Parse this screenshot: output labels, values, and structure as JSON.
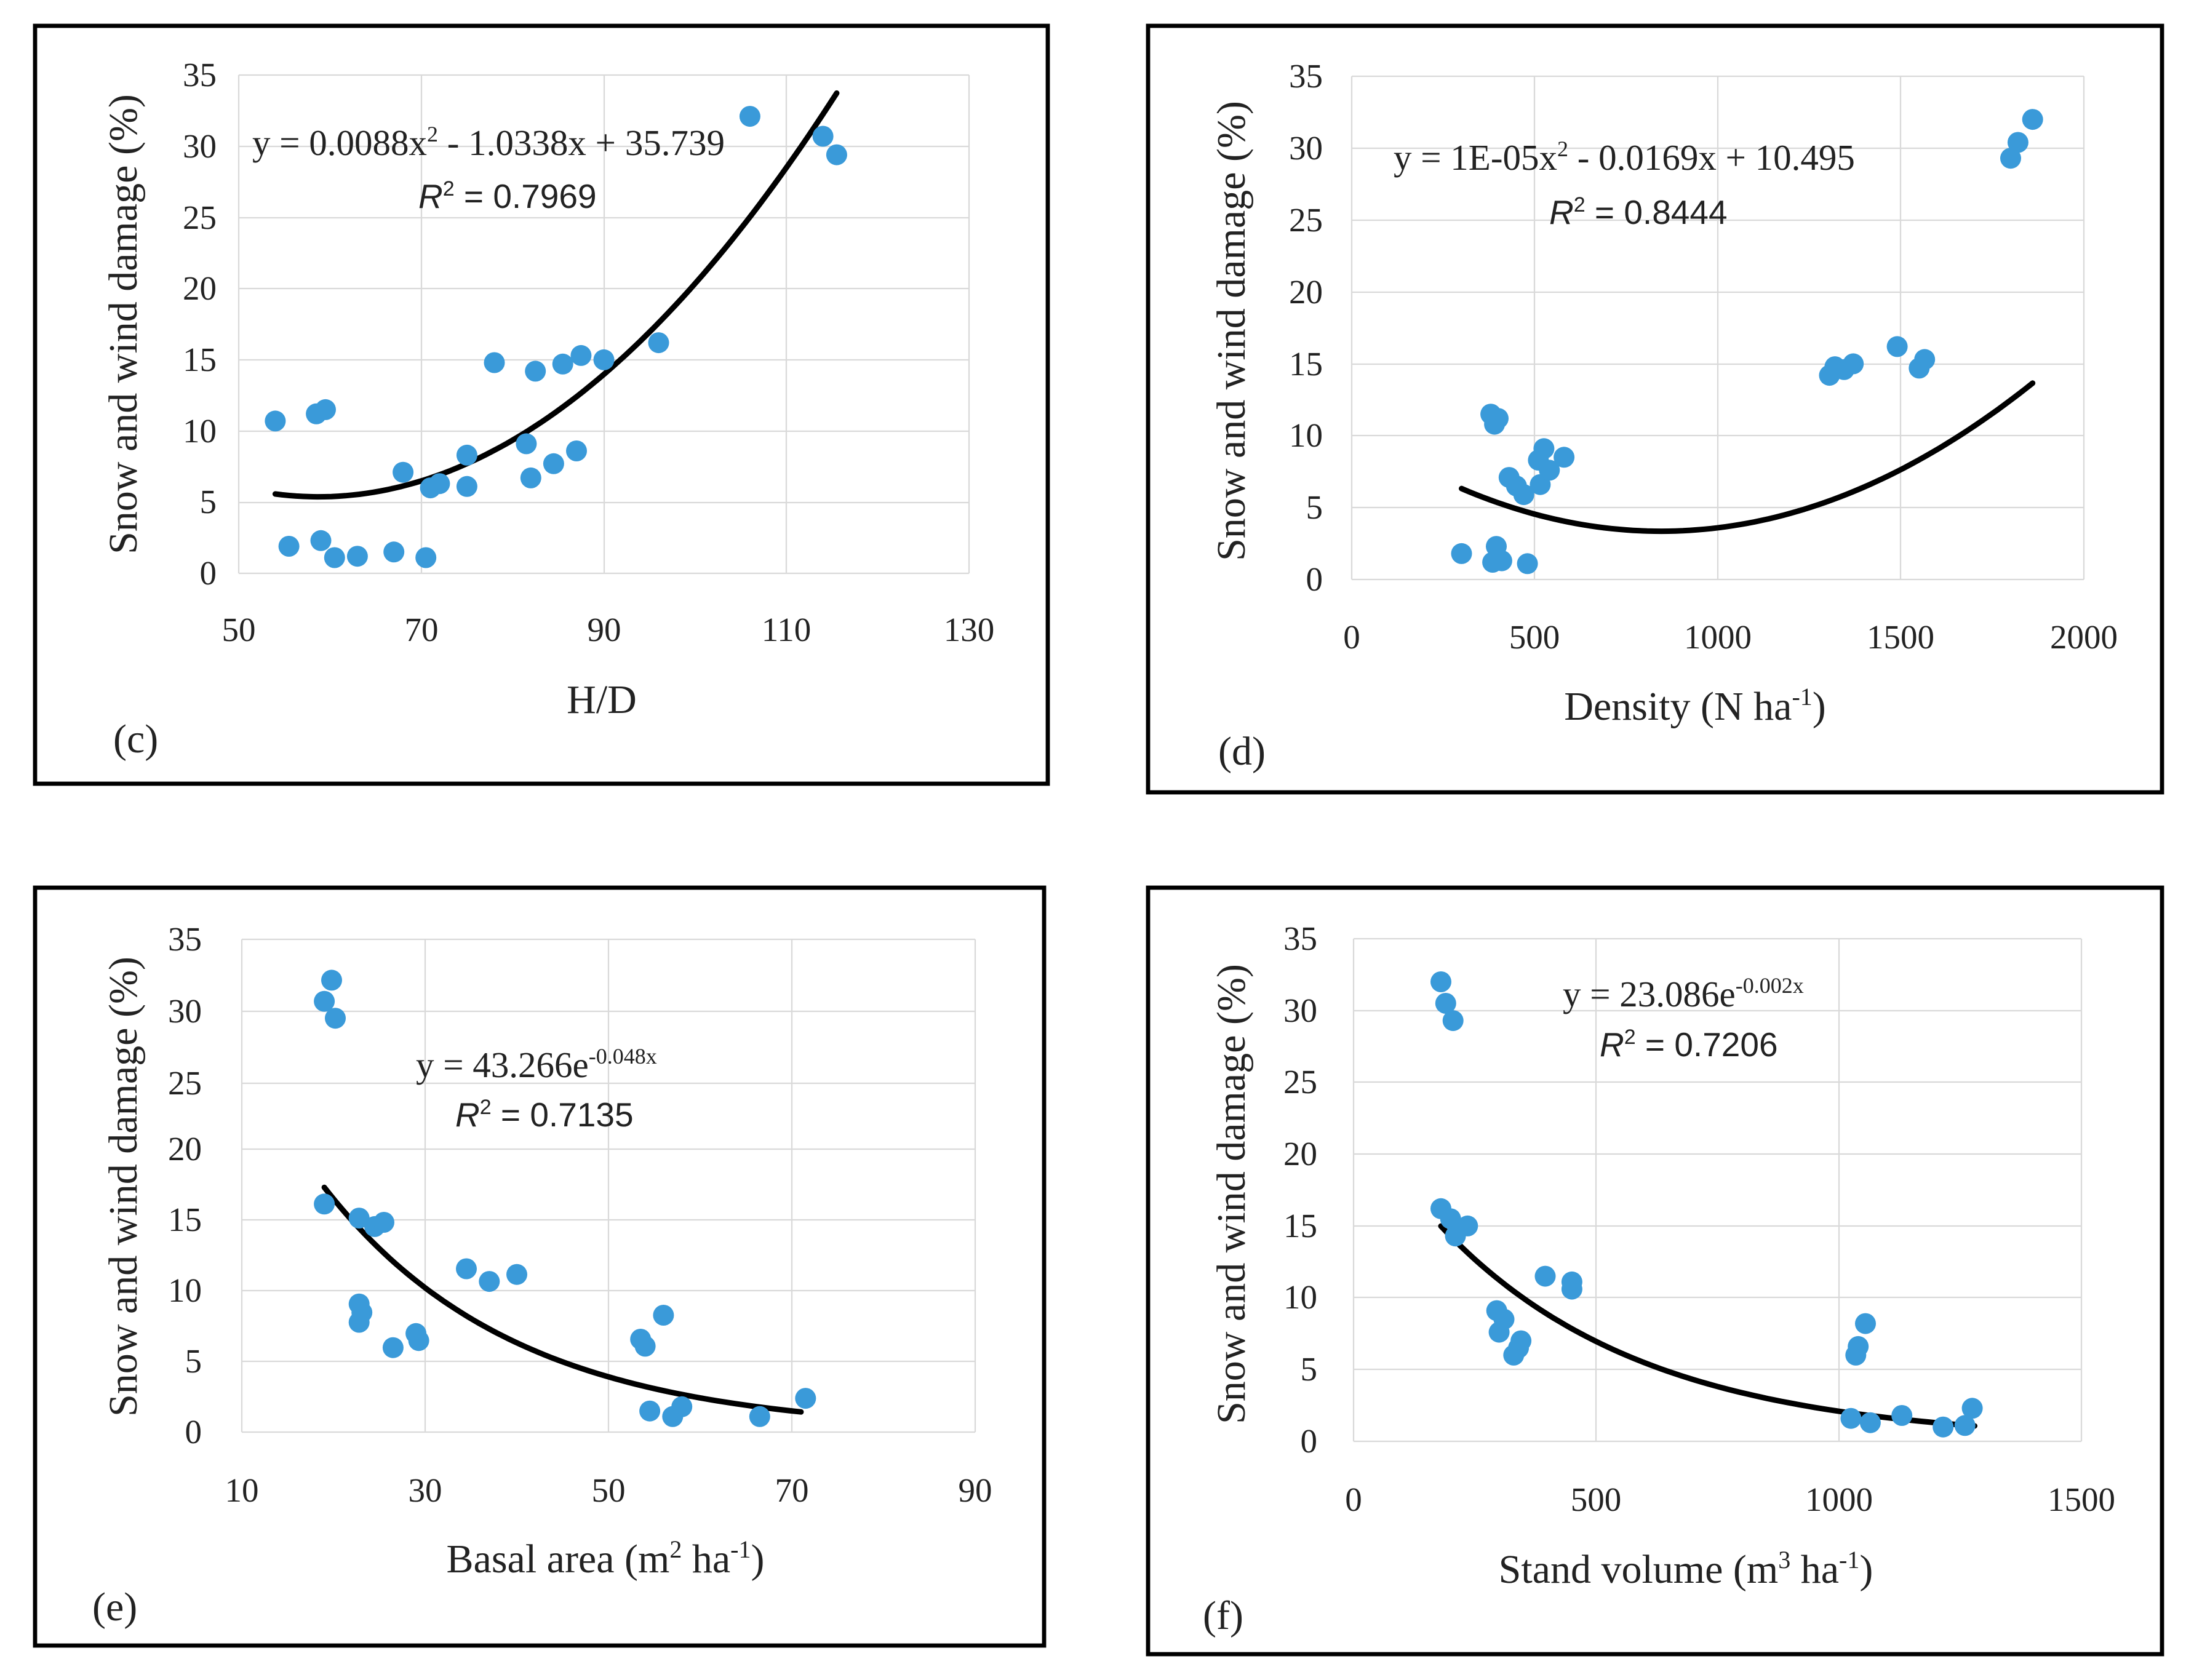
{
  "colors": {
    "point": "#3a9ad9",
    "fit_line": "#000000",
    "grid": "#d9d9d9",
    "frame": "#000000"
  },
  "chart_data": [
    {
      "panel": "(c)",
      "type": "scatter",
      "xlabel": "H/D",
      "ylabel": "Snow and wind damage (%)",
      "xlim": [
        50,
        130
      ],
      "ylim": [
        0,
        35
      ],
      "xticks": [
        50,
        70,
        90,
        110,
        130
      ],
      "yticks": [
        0,
        5,
        10,
        15,
        20,
        25,
        30,
        35
      ],
      "fit": {
        "kind": "poly2",
        "a": 0.0088,
        "b": -1.0338,
        "c": 35.739,
        "x_range": [
          54,
          115.5
        ]
      },
      "equation": {
        "pre": "y = 0.0088x",
        "sup": "2",
        "post": " - 1.0338x + 35.739"
      },
      "r2": {
        "label": "R",
        "sup": "2",
        "value": " = 0.7969"
      },
      "points": [
        [
          54,
          10.7
        ],
        [
          55.5,
          1.9
        ],
        [
          58.5,
          11.2
        ],
        [
          59.5,
          11.5
        ],
        [
          59,
          2.3
        ],
        [
          60.5,
          1.1
        ],
        [
          63,
          1.2
        ],
        [
          67,
          1.5
        ],
        [
          68,
          7.1
        ],
        [
          70.5,
          1.1
        ],
        [
          71,
          6
        ],
        [
          72,
          6.3
        ],
        [
          75,
          8.3
        ],
        [
          75,
          6.1
        ],
        [
          78,
          14.8
        ],
        [
          81.5,
          9.1
        ],
        [
          82,
          6.7
        ],
        [
          82.5,
          14.2
        ],
        [
          84.5,
          7.7
        ],
        [
          85.5,
          14.7
        ],
        [
          87,
          8.6
        ],
        [
          87.5,
          15.3
        ],
        [
          90,
          15
        ],
        [
          96,
          16.2
        ],
        [
          106,
          32.1
        ],
        [
          114,
          30.7
        ],
        [
          115.5,
          29.4
        ]
      ]
    },
    {
      "panel": "(d)",
      "type": "scatter",
      "xlabel_pre": "Density (N ha",
      "xlabel_sup": "-1",
      "xlabel_post": ")",
      "ylabel": "Snow and wind damage (%)",
      "xlim": [
        0,
        2000
      ],
      "ylim": [
        0,
        35
      ],
      "xticks": [
        0,
        500,
        1000,
        1500,
        2000
      ],
      "yticks": [
        0,
        5,
        10,
        15,
        20,
        25,
        30,
        35
      ],
      "fit": {
        "kind": "poly2",
        "a": 1e-05,
        "b": -0.0169,
        "c": 10.495,
        "x_range": [
          300,
          1860
        ]
      },
      "equation": {
        "pre": "y = 1E-05x",
        "sup": "2",
        "post": " - 0.0169x + 10.495"
      },
      "r2": {
        "label": "R",
        "sup": "2",
        "value": " = 0.8444"
      },
      "points": [
        [
          300,
          1.8
        ],
        [
          380,
          11.5
        ],
        [
          390,
          10.8
        ],
        [
          400,
          11.2
        ],
        [
          395,
          2.3
        ],
        [
          385,
          1.2
        ],
        [
          410,
          1.3
        ],
        [
          430,
          7.1
        ],
        [
          450,
          6.5
        ],
        [
          470,
          5.9
        ],
        [
          480,
          1.1
        ],
        [
          510,
          8.3
        ],
        [
          515,
          6.6
        ],
        [
          525,
          9.1
        ],
        [
          540,
          7.6
        ],
        [
          580,
          8.5
        ],
        [
          1305,
          14.2
        ],
        [
          1320,
          14.8
        ],
        [
          1345,
          14.6
        ],
        [
          1370,
          15
        ],
        [
          1490,
          16.2
        ],
        [
          1550,
          14.7
        ],
        [
          1565,
          15.3
        ],
        [
          1800,
          29.3
        ],
        [
          1820,
          30.4
        ],
        [
          1860,
          32
        ]
      ]
    },
    {
      "panel": "(e)",
      "type": "scatter",
      "xlabel_pre": "Basal area (m",
      "xlabel_sup1": "2",
      "xlabel_mid": " ha",
      "xlabel_sup2": "-1",
      "xlabel_post": ")",
      "ylabel": "Snow and wind damage (%)",
      "xlim": [
        10,
        90
      ],
      "ylim": [
        0,
        35
      ],
      "xticks": [
        10,
        30,
        50,
        70,
        90
      ],
      "yticks": [
        0,
        5,
        10,
        15,
        20,
        25,
        30,
        35
      ],
      "fit": {
        "kind": "exp",
        "a": 43.266,
        "b": -0.048,
        "x_range": [
          19,
          71
        ]
      },
      "equation": {
        "pre": "y = 43.266e",
        "sup": "-0.048x",
        "post": ""
      },
      "r2": {
        "label": "R",
        "sup": "2",
        "value": " = 0.7135"
      },
      "points": [
        [
          19,
          16.2
        ],
        [
          19,
          30.6
        ],
        [
          19.8,
          32.1
        ],
        [
          20.2,
          29.4
        ],
        [
          22.8,
          15.2
        ],
        [
          22.8,
          9.1
        ],
        [
          23.1,
          8.5
        ],
        [
          22.8,
          7.8
        ],
        [
          24.5,
          14.6
        ],
        [
          25.5,
          14.9
        ],
        [
          26.5,
          6
        ],
        [
          29,
          7
        ],
        [
          29.3,
          6.5
        ],
        [
          34.5,
          11.6
        ],
        [
          37,
          10.7
        ],
        [
          40,
          11.2
        ],
        [
          53.5,
          6.6
        ],
        [
          54,
          6.1
        ],
        [
          54.5,
          1.5
        ],
        [
          56,
          8.3
        ],
        [
          57,
          1.1
        ],
        [
          58,
          1.8
        ],
        [
          66.5,
          1.1
        ],
        [
          71.5,
          2.4
        ]
      ]
    },
    {
      "panel": "(f)",
      "type": "scatter",
      "xlabel_pre": "Stand volume (m",
      "xlabel_sup1": "3",
      "xlabel_mid": " ha",
      "xlabel_sup2": "-1",
      "xlabel_post": ")",
      "ylabel": "Snow and wind damage (%)",
      "xlim": [
        0,
        1500
      ],
      "ylim": [
        0,
        35
      ],
      "xticks": [
        0,
        500,
        1000,
        1500
      ],
      "yticks": [
        0,
        5,
        10,
        15,
        20,
        25,
        30,
        35
      ],
      "fit": {
        "kind": "exp",
        "a": 23.086,
        "b": -0.0024,
        "x_range": [
          180,
          1280
        ]
      },
      "equation": {
        "pre": "y = 23.086e",
        "sup": "-0.002x",
        "post": ""
      },
      "r2": {
        "label": "R",
        "sup": "2",
        "value": " = 0.7206"
      },
      "points": [
        [
          180,
          16.2
        ],
        [
          180,
          32
        ],
        [
          190,
          30.5
        ],
        [
          205,
          29.3
        ],
        [
          200,
          15.5
        ],
        [
          210,
          14.3
        ],
        [
          235,
          15
        ],
        [
          295,
          9.1
        ],
        [
          300,
          7.6
        ],
        [
          310,
          8.5
        ],
        [
          330,
          6
        ],
        [
          340,
          6.5
        ],
        [
          345,
          7
        ],
        [
          395,
          11.5
        ],
        [
          450,
          10.6
        ],
        [
          450,
          11.1
        ],
        [
          1025,
          1.6
        ],
        [
          1035,
          6
        ],
        [
          1040,
          6.6
        ],
        [
          1055,
          8.2
        ],
        [
          1065,
          1.3
        ],
        [
          1130,
          1.8
        ],
        [
          1215,
          1
        ],
        [
          1260,
          1.1
        ],
        [
          1275,
          2.3
        ]
      ]
    }
  ]
}
